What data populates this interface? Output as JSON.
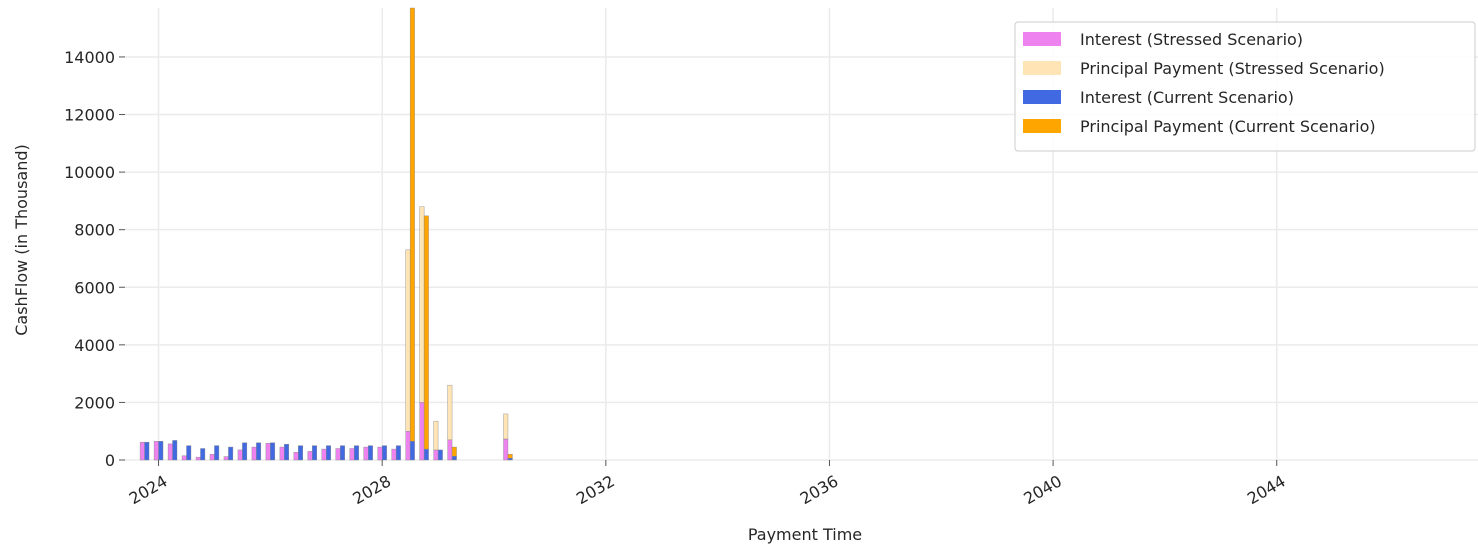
{
  "chart_data": {
    "type": "bar",
    "title": "",
    "xlabel": "Payment Time",
    "ylabel": "CashFlow (in Thousand)",
    "xlim": [
      2023.4,
      2047.6
    ],
    "ylim": [
      0,
      15700
    ],
    "x_ticks": [
      2024,
      2028,
      2032,
      2036,
      2040,
      2044
    ],
    "y_ticks": [
      0,
      2000,
      4000,
      6000,
      8000,
      10000,
      12000,
      14000
    ],
    "grid": true,
    "legend_position": "top-right",
    "legend": [
      {
        "name": "Interest (Stressed Scenario)",
        "color": "#ee82ee"
      },
      {
        "name": "Principal Payment (Stressed Scenario)",
        "color": "#ffe4b5"
      },
      {
        "name": "Interest (Current Scenario)",
        "color": "#4169e1"
      },
      {
        "name": "Principal Payment (Current Scenario)",
        "color": "#ffa500"
      }
    ],
    "stressed": {
      "x": [
        2023.71,
        2023.96,
        2024.21,
        2024.46,
        2024.71,
        2024.96,
        2025.21,
        2025.46,
        2025.71,
        2025.96,
        2026.21,
        2026.46,
        2026.71,
        2026.96,
        2027.21,
        2027.46,
        2027.71,
        2027.96,
        2028.21,
        2028.46,
        2028.71,
        2028.96,
        2029.21,
        2030.21
      ],
      "interest": [
        620,
        650,
        560,
        150,
        100,
        200,
        120,
        350,
        450,
        580,
        450,
        270,
        300,
        380,
        400,
        400,
        450,
        450,
        380,
        1000,
        2000,
        350,
        700,
        730
      ],
      "principal": [
        0,
        0,
        0,
        0,
        0,
        0,
        0,
        0,
        0,
        0,
        0,
        0,
        0,
        0,
        0,
        0,
        0,
        0,
        0,
        6300,
        6800,
        1000,
        1900,
        870
      ]
    },
    "current": {
      "x": [
        2023.79,
        2024.04,
        2024.29,
        2024.54,
        2024.79,
        2025.04,
        2025.29,
        2025.54,
        2025.79,
        2026.04,
        2026.29,
        2026.54,
        2026.79,
        2027.04,
        2027.29,
        2027.54,
        2027.79,
        2028.04,
        2028.29,
        2028.54,
        2028.79,
        2029.04,
        2029.29,
        2030.29
      ],
      "interest": [
        620,
        650,
        680,
        500,
        400,
        500,
        450,
        600,
        600,
        600,
        550,
        500,
        500,
        500,
        500,
        500,
        500,
        500,
        500,
        650,
        380,
        350,
        130,
        60
      ],
      "principal": [
        0,
        0,
        0,
        0,
        0,
        0,
        0,
        0,
        0,
        0,
        0,
        0,
        0,
        0,
        0,
        0,
        0,
        0,
        0,
        15050,
        8100,
        0,
        320,
        140
      ]
    }
  }
}
